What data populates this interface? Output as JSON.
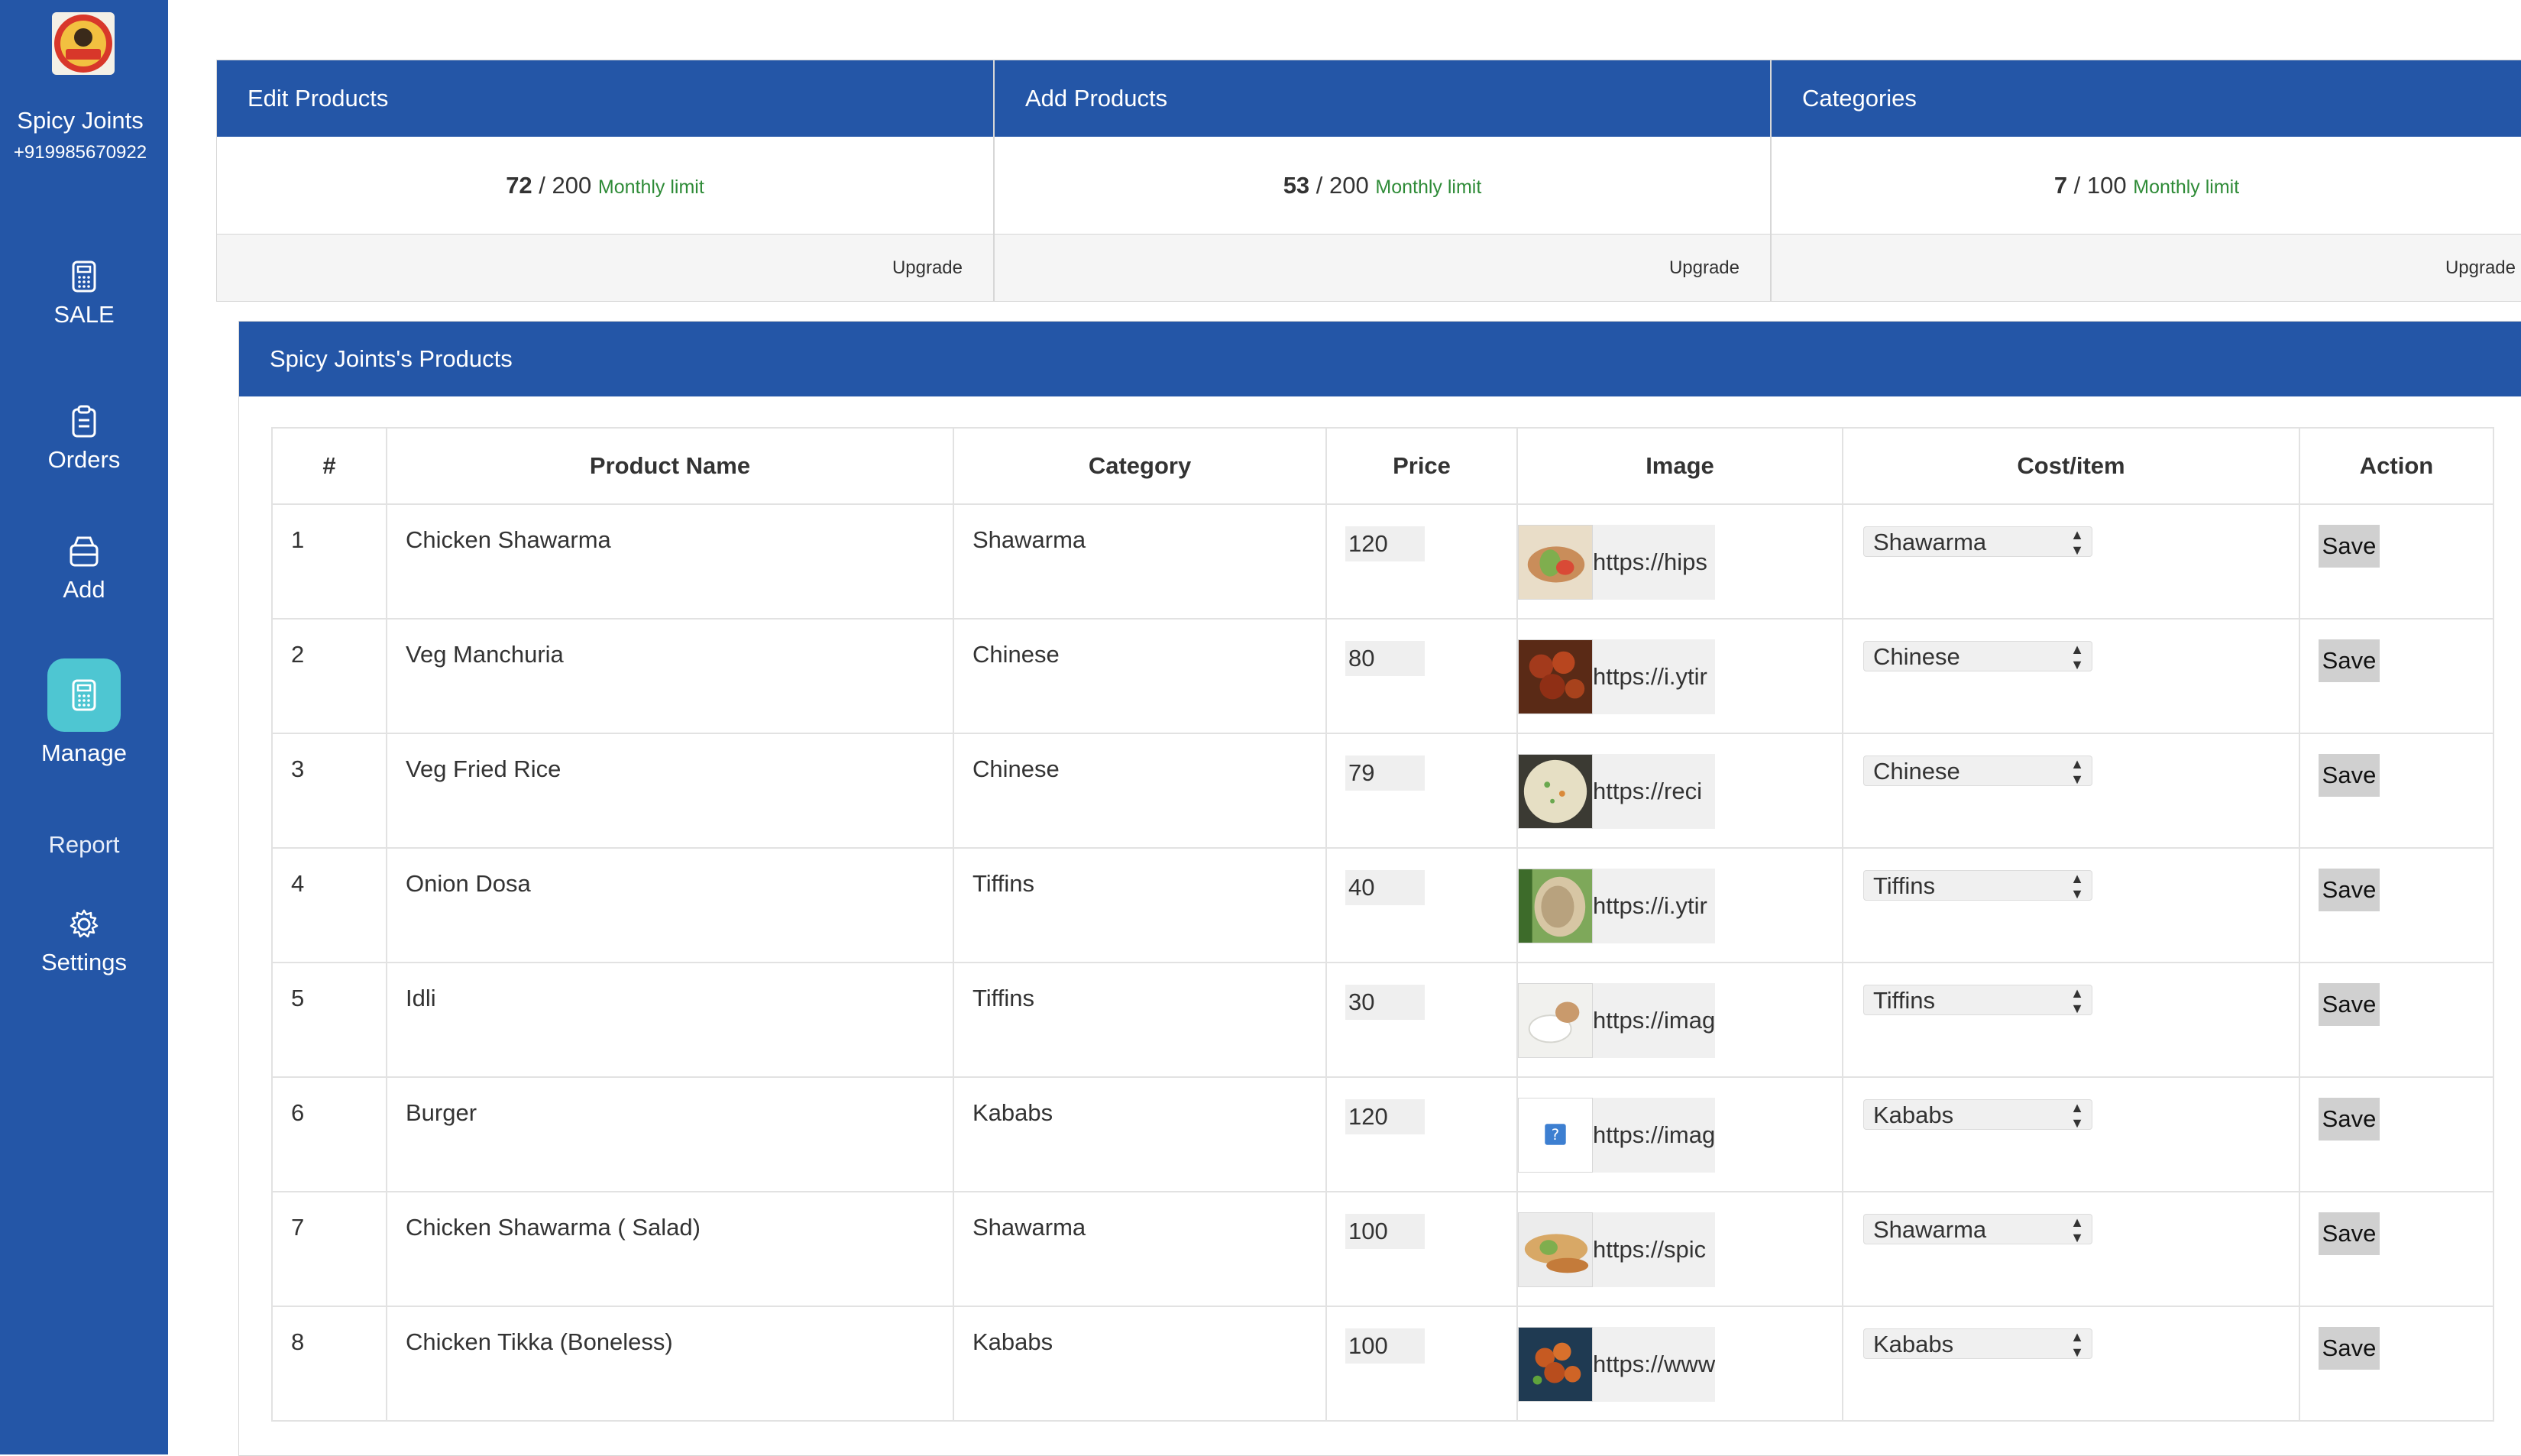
{
  "brand": {
    "name": "Spicy Joints",
    "phone": "+919985670922",
    "logo_text": "HOT-K"
  },
  "nav": [
    {
      "label": "SALE",
      "icon": "calculator-icon"
    },
    {
      "label": "Orders",
      "icon": "clipboard-icon"
    },
    {
      "label": "Add",
      "icon": "archive-box-icon"
    },
    {
      "label": "Manage",
      "icon": "calculator-icon",
      "active": true
    },
    {
      "label": "Report",
      "icon": ""
    },
    {
      "label": "Settings",
      "icon": "gear-icon"
    }
  ],
  "cards": [
    {
      "title": "Edit Products",
      "used": "72",
      "total": "200",
      "limit_label": "Monthly limit",
      "upgrade": "Upgrade"
    },
    {
      "title": "Add Products",
      "used": "53",
      "total": "200",
      "limit_label": "Monthly limit",
      "upgrade": "Upgrade"
    },
    {
      "title": "Categories",
      "used": "7",
      "total": "100",
      "limit_label": "Monthly limit",
      "upgrade": "Upgrade"
    }
  ],
  "products_panel": {
    "title": "Spicy Joints's Products",
    "columns": [
      "#",
      "Product Name",
      "Category",
      "Price",
      "Image",
      "Cost/item",
      "Action"
    ],
    "rows": [
      {
        "num": "1",
        "name": "Chicken Shawarma",
        "category": "Shawarma",
        "price": "120",
        "image_url": "https://hips",
        "select": "Shawarma",
        "action": "Save"
      },
      {
        "num": "2",
        "name": "Veg Manchuria",
        "category": "Chinese",
        "price": "80",
        "image_url": "https://i.ytir",
        "select": "Chinese",
        "action": "Save"
      },
      {
        "num": "3",
        "name": "Veg Fried Rice",
        "category": "Chinese",
        "price": "79",
        "image_url": "https://reci",
        "select": "Chinese",
        "action": "Save"
      },
      {
        "num": "4",
        "name": "Onion Dosa",
        "category": "Tiffins",
        "price": "40",
        "image_url": "https://i.ytir",
        "select": "Tiffins",
        "action": "Save"
      },
      {
        "num": "5",
        "name": "Idli",
        "category": "Tiffins",
        "price": "30",
        "image_url": "https://imag",
        "select": "Tiffins",
        "action": "Save"
      },
      {
        "num": "6",
        "name": "Burger",
        "category": "Kababs",
        "price": "120",
        "image_url": "https://imag",
        "select": "Kababs",
        "action": "Save"
      },
      {
        "num": "7",
        "name": "Chicken Shawarma ( Salad)",
        "category": "Shawarma",
        "price": "100",
        "image_url": "https://spic",
        "select": "Shawarma",
        "action": "Save"
      },
      {
        "num": "8",
        "name": "Chicken Tikka (Boneless)",
        "category": "Kababs",
        "price": "100",
        "image_url": "https://www",
        "select": "Kababs",
        "action": "Save"
      }
    ]
  },
  "colors": {
    "primary": "#2456a7",
    "active_nav": "#4ec6d2",
    "limit_text": "#2e8b37"
  }
}
